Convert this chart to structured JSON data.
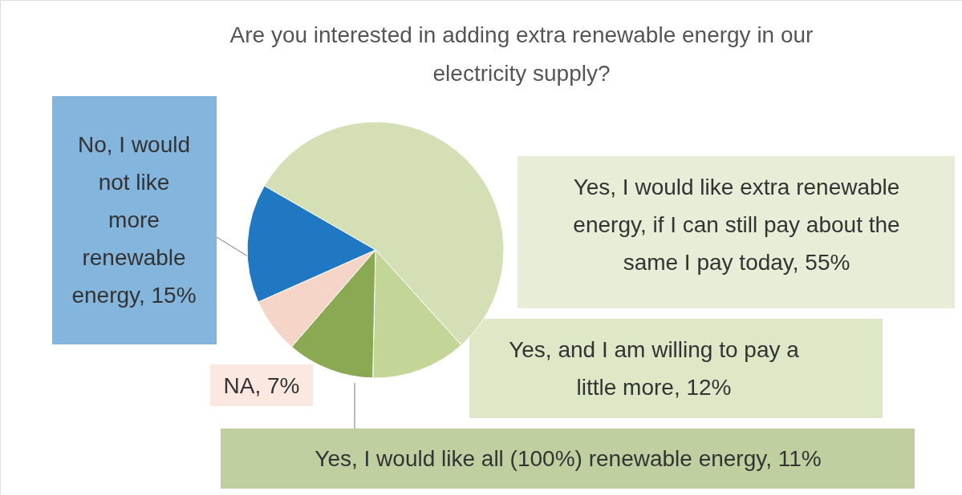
{
  "chart_data": {
    "type": "pie",
    "title": "Are you interested in adding extra renewable energy in our electricity supply?",
    "categories": [
      "Yes, I would like extra renewable energy, if I can still pay about the same I pay today",
      "Yes, and I am willing to pay a little more",
      "Yes, I would like all (100%) renewable energy",
      "NA",
      "No, I would not like more renewable energy"
    ],
    "values": [
      55,
      12,
      11,
      7,
      15
    ],
    "value_labels": [
      "55%",
      "12%",
      "11%",
      "7%",
      "15%"
    ],
    "colors": [
      "#d4dfb6",
      "#c3d597",
      "#8ba852",
      "#f5d5c8",
      "#1f78c1"
    ]
  }
}
